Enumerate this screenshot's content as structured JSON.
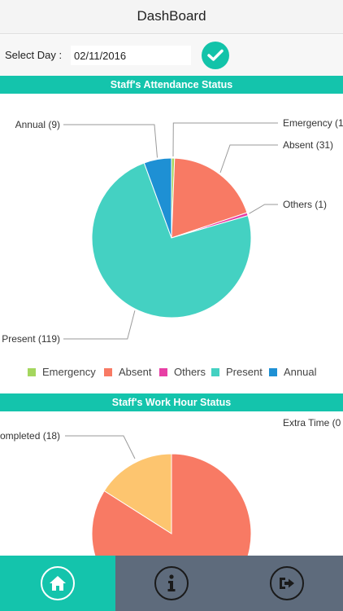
{
  "header": {
    "title": "DashBoard"
  },
  "date_filter": {
    "label": "Select Day :",
    "value": "02/11/2016",
    "submit_icon": "check-icon"
  },
  "attendance": {
    "section_title": "Staff's Attendance Status",
    "colors": {
      "Emergency": "#a4d65e",
      "Absent": "#f87a64",
      "Others": "#e83fa5",
      "Present": "#44d1c2",
      "Annual": "#1e90d4"
    },
    "chart_data": {
      "type": "pie",
      "categories": [
        "Emergency",
        "Absent",
        "Others",
        "Present",
        "Annual"
      ],
      "values": [
        1,
        31,
        1,
        119,
        9
      ],
      "labels": [
        "Emergency (1",
        "Absent (31)",
        "Others (1)",
        "Present (119)",
        "Annual (9)"
      ],
      "legend": [
        "Emergency",
        "Absent",
        "Others",
        "Present",
        "Annual"
      ],
      "legend_position": "bottom"
    }
  },
  "work_hours": {
    "section_title": "Staff's Work Hour Status",
    "colors": {
      "Extra Time": "#f87a64",
      "Completed": "#fdc56f"
    },
    "chart_data": {
      "type": "pie",
      "visible_labels": [
        "ompleted (18)",
        "Extra Time (0"
      ],
      "values": {
        "Completed": 18
      }
    }
  },
  "nav": {
    "home_icon": "home-icon",
    "info_icon": "info-icon",
    "logout_icon": "logout-icon"
  }
}
